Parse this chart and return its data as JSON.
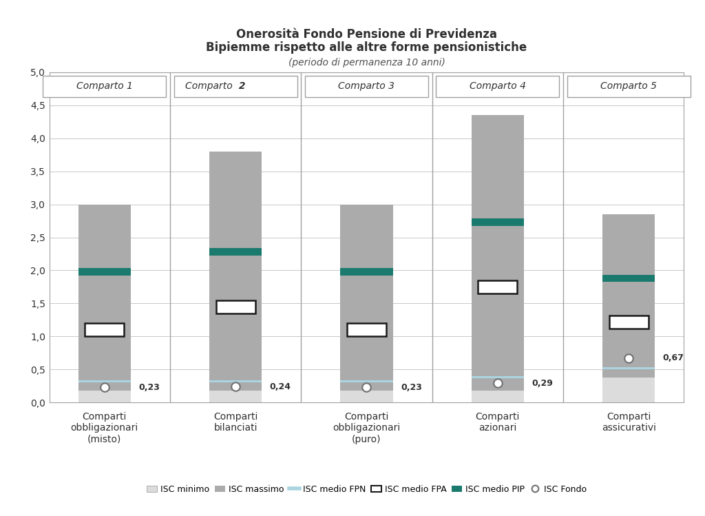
{
  "title_line1": "Onerosità Fondo Pensione di Previdenza",
  "title_line2": "Bipiemme rispetto alle altre forme pensionistiche",
  "title_line3": "(periodo di permanenza 10 anni)",
  "comparto_labels": [
    "Comparto 1",
    "Comparto 2",
    "Comparto 3",
    "Comparto 4",
    "Comparto 5"
  ],
  "x_labels": [
    "Comparti\nobbligazionari\n(misto)",
    "Comparti\nbilanciati",
    "Comparti\nobbligazionari\n(puro)",
    "Comparti\nazionari",
    "Comparti\nassicurativi"
  ],
  "isc_minimo": [
    0.18,
    0.18,
    0.18,
    0.18,
    0.38
  ],
  "isc_massimo": [
    3.0,
    3.8,
    3.0,
    4.35,
    2.85
  ],
  "isc_fpn": [
    0.32,
    0.32,
    0.32,
    0.38,
    0.52
  ],
  "isc_fpa_center": [
    1.1,
    1.45,
    1.1,
    1.75,
    1.22
  ],
  "isc_fpa_half": [
    0.1,
    0.1,
    0.1,
    0.1,
    0.1
  ],
  "isc_pip_center": [
    1.98,
    2.28,
    1.98,
    2.73,
    1.88
  ],
  "isc_pip_half": [
    0.055,
    0.055,
    0.055,
    0.055,
    0.055
  ],
  "isc_fondo": [
    0.23,
    0.24,
    0.23,
    0.29,
    0.67
  ],
  "isc_fondo_labels": [
    "0,23",
    "0,24",
    "0,23",
    "0,29",
    "0,67"
  ],
  "color_minimo": "#dcdcdc",
  "color_massimo": "#ababab",
  "color_fpn": "#aad4e0",
  "color_fpa_fill": "#ffffff",
  "color_fpa_edge": "#1a1a1a",
  "color_pip": "#1a7a6e",
  "color_fondo_fill": "#ffffff",
  "color_fondo_edge": "#707070",
  "ylim": [
    0.0,
    5.0
  ],
  "yticks": [
    0.0,
    0.5,
    1.0,
    1.5,
    2.0,
    2.5,
    3.0,
    3.5,
    4.0,
    4.5,
    5.0
  ],
  "bar_width": 0.4,
  "background_color": "#ffffff",
  "grid_color": "#c8c8c8",
  "frame_color": "#a0a0a0"
}
